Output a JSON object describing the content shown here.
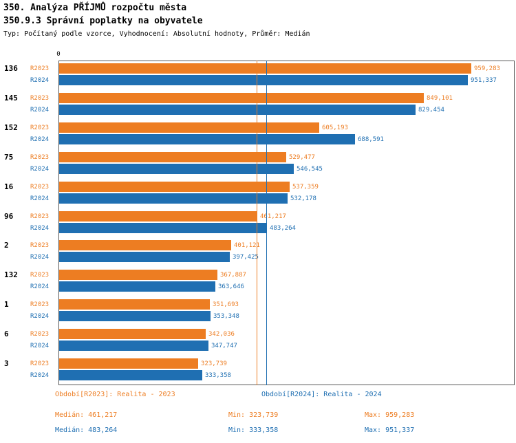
{
  "header": {
    "title_line1": "350. Analýza PŘÍJMŮ rozpočtu města",
    "title_line2": "350.9.3 Správní poplatky na obyvatele",
    "subtitle": "Typ: Počítaný podle vzorce, Vyhodnocení: Absolutní hodnoty, Průměr: Medián"
  },
  "colors": {
    "r2023": "#ED7D22",
    "r2024": "#1F6FB2",
    "category_label": "#000000",
    "plot_border": "#555555"
  },
  "chart_data": {
    "type": "bar",
    "orientation": "horizontal",
    "title": "350.9.3 Správní poplatky na obyvatele",
    "xlabel": "",
    "ylabel": "",
    "x_zero_tick": "0",
    "xlim": [
      0,
      1062500
    ],
    "grid": false,
    "legend_position": "bottom",
    "categories": [
      "136",
      "145",
      "152",
      "75",
      "16",
      "96",
      "2",
      "132",
      "1",
      "6",
      "3"
    ],
    "series": [
      {
        "name": "R2023",
        "color": "#ED7D22",
        "values": [
          959283,
          849101,
          605193,
          529477,
          537359,
          461217,
          401121,
          367887,
          351693,
          342036,
          323739
        ],
        "labels": [
          "959,283",
          "849,101",
          "605,193",
          "529,477",
          "537,359",
          "461,217",
          "401,121",
          "367,887",
          "351,693",
          "342,036",
          "323,739"
        ]
      },
      {
        "name": "R2024",
        "color": "#1F6FB2",
        "values": [
          951337,
          829454,
          688591,
          546545,
          532178,
          483264,
          397425,
          363646,
          353348,
          347747,
          333358
        ],
        "labels": [
          "951,337",
          "829,454",
          "688,591",
          "546,545",
          "532,178",
          "483,264",
          "397,425",
          "363,646",
          "353,348",
          "347,747",
          "333,358"
        ]
      }
    ],
    "median_lines": [
      {
        "series": "R2023",
        "value": 461217,
        "color": "#ED7D22"
      },
      {
        "series": "R2024",
        "value": 483264,
        "color": "#1F6FB2"
      }
    ]
  },
  "legend": {
    "items": [
      {
        "label": "Období[R2023]: Realita - 2023",
        "color": "#ED7D22"
      },
      {
        "label": "Období[R2024]: Realita - 2024",
        "color": "#1F6FB2"
      }
    ]
  },
  "stats": {
    "rows": [
      {
        "median": "Medián: 461,217",
        "min": "Min: 323,739",
        "max": "Max: 959,283",
        "color": "#ED7D22"
      },
      {
        "median": "Medián: 483,264",
        "min": "Min: 333,358",
        "max": "Max: 951,337",
        "color": "#1F6FB2"
      }
    ]
  }
}
